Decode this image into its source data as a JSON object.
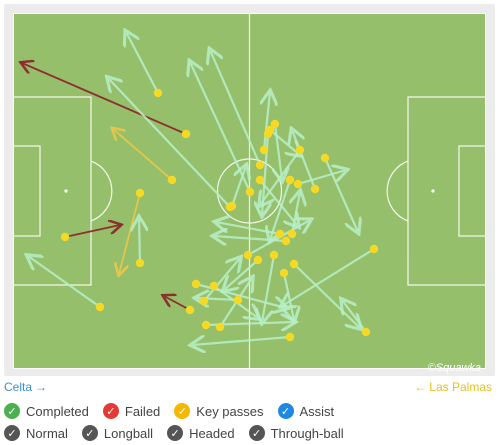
{
  "teams": {
    "home": "Celta",
    "away": "Las Palmas",
    "home_arrow": "→",
    "away_arrow": "←"
  },
  "watermark": "©Squawka",
  "legend": {
    "row1": [
      {
        "label": "Completed",
        "color": "#4caf50",
        "icon": "check-icon"
      },
      {
        "label": "Failed",
        "color": "#e53935",
        "icon": "check-icon"
      },
      {
        "label": "Key passes",
        "color": "#f5b800",
        "icon": "check-icon"
      },
      {
        "label": "Assist",
        "color": "#1e88e5",
        "icon": "check-icon"
      }
    ],
    "row2": [
      {
        "label": "Normal",
        "color": "#555555",
        "icon": "check-icon"
      },
      {
        "label": "Longball",
        "color": "#555555",
        "icon": "check-icon"
      },
      {
        "label": "Headed",
        "color": "#555555",
        "icon": "check-icon"
      },
      {
        "label": "Through-ball",
        "color": "#555555",
        "icon": "check-icon"
      }
    ]
  },
  "colors": {
    "pitch": "#96bf6c",
    "lines": "#ffffff",
    "completed": "#b8f0c8",
    "failed": "#8b2a2a",
    "key": "#e8c84a",
    "start": "#f5d924"
  },
  "passes": [
    {
      "s": [
        158,
        93
      ],
      "e": [
        126,
        32
      ],
      "t": "completed"
    },
    {
      "s": [
        186,
        134
      ],
      "e": [
        22,
        63
      ],
      "t": "failed"
    },
    {
      "s": [
        172,
        180
      ],
      "e": [
        113,
        129
      ],
      "t": "key"
    },
    {
      "s": [
        140,
        193
      ],
      "e": [
        119,
        274
      ],
      "t": "key"
    },
    {
      "s": [
        65,
        237
      ],
      "e": [
        120,
        225
      ],
      "t": "failed"
    },
    {
      "s": [
        140,
        263
      ],
      "e": [
        139,
        218
      ],
      "t": "completed"
    },
    {
      "s": [
        100,
        307
      ],
      "e": [
        28,
        256
      ],
      "t": "completed"
    },
    {
      "s": [
        230,
        207
      ],
      "e": [
        108,
        78
      ],
      "t": "completed"
    },
    {
      "s": [
        260,
        165
      ],
      "e": [
        210,
        50
      ],
      "t": "completed"
    },
    {
      "s": [
        250,
        192
      ],
      "e": [
        190,
        62
      ],
      "t": "completed"
    },
    {
      "s": [
        264,
        150
      ],
      "e": [
        270,
        92
      ],
      "t": "completed"
    },
    {
      "s": [
        270,
        130
      ],
      "e": [
        300,
        155
      ],
      "t": "completed"
    },
    {
      "s": [
        268,
        134
      ],
      "e": [
        262,
        215
      ],
      "t": "completed"
    },
    {
      "s": [
        275,
        124
      ],
      "e": [
        282,
        180
      ],
      "t": "completed"
    },
    {
      "s": [
        300,
        150
      ],
      "e": [
        260,
        205
      ],
      "t": "completed"
    },
    {
      "s": [
        325,
        158
      ],
      "e": [
        358,
        232
      ],
      "t": "completed"
    },
    {
      "s": [
        315,
        189
      ],
      "e": [
        292,
        130
      ],
      "t": "completed"
    },
    {
      "s": [
        298,
        184
      ],
      "e": [
        346,
        170
      ],
      "t": "completed"
    },
    {
      "s": [
        290,
        180
      ],
      "e": [
        270,
        240
      ],
      "t": "completed"
    },
    {
      "s": [
        260,
        180
      ],
      "e": [
        298,
        226
      ],
      "t": "completed"
    },
    {
      "s": [
        232,
        206
      ],
      "e": [
        246,
        166
      ],
      "t": "completed"
    },
    {
      "s": [
        280,
        234
      ],
      "e": [
        216,
        222
      ],
      "t": "completed"
    },
    {
      "s": [
        292,
        234
      ],
      "e": [
        300,
        192
      ],
      "t": "completed"
    },
    {
      "s": [
        286,
        241
      ],
      "e": [
        214,
        236
      ],
      "t": "completed"
    },
    {
      "s": [
        248,
        255
      ],
      "e": [
        310,
        220
      ],
      "t": "completed"
    },
    {
      "s": [
        258,
        260
      ],
      "e": [
        224,
        290
      ],
      "t": "completed"
    },
    {
      "s": [
        274,
        255
      ],
      "e": [
        262,
        322
      ],
      "t": "completed"
    },
    {
      "s": [
        294,
        264
      ],
      "e": [
        360,
        328
      ],
      "t": "completed"
    },
    {
      "s": [
        284,
        273
      ],
      "e": [
        294,
        320
      ],
      "t": "completed"
    },
    {
      "s": [
        374,
        249
      ],
      "e": [
        282,
        306
      ],
      "t": "completed"
    },
    {
      "s": [
        366,
        332
      ],
      "e": [
        342,
        300
      ],
      "t": "completed"
    },
    {
      "s": [
        196,
        284
      ],
      "e": [
        286,
        308
      ],
      "t": "completed"
    },
    {
      "s": [
        214,
        286
      ],
      "e": [
        258,
        318
      ],
      "t": "completed"
    },
    {
      "s": [
        206,
        325
      ],
      "e": [
        294,
        322
      ],
      "t": "completed"
    },
    {
      "s": [
        238,
        300
      ],
      "e": [
        196,
        298
      ],
      "t": "completed"
    },
    {
      "s": [
        220,
        327
      ],
      "e": [
        252,
        278
      ],
      "t": "completed"
    },
    {
      "s": [
        290,
        337
      ],
      "e": [
        192,
        345
      ],
      "t": "completed"
    },
    {
      "s": [
        190,
        310
      ],
      "e": [
        164,
        296
      ],
      "t": "failed"
    },
    {
      "s": [
        204,
        301
      ],
      "e": [
        240,
        258
      ],
      "t": "completed"
    }
  ]
}
